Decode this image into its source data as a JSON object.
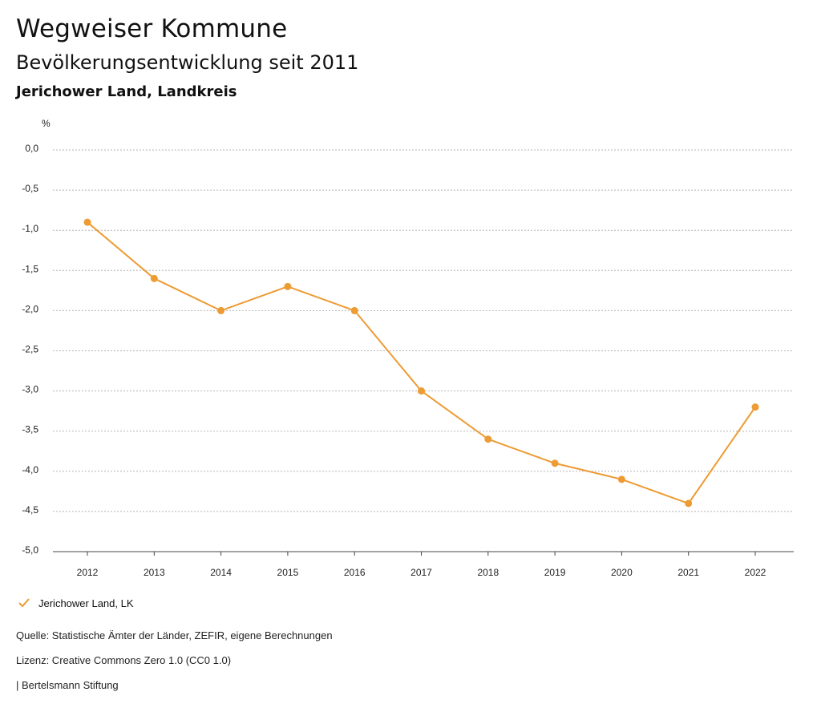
{
  "header": {
    "title": "Wegweiser Kommune",
    "subtitle": "Bevölkerungsentwicklung seit 2011",
    "region": "Jerichower Land, Landkreis"
  },
  "colors": {
    "series": "#ed9b33",
    "grid": "#b5b5b5",
    "axis": "#444444"
  },
  "chart_data": {
    "type": "line",
    "title": "Bevölkerungsentwicklung seit 2011",
    "unit": "%",
    "x": [
      "2012",
      "2013",
      "2014",
      "2015",
      "2016",
      "2017",
      "2018",
      "2019",
      "2020",
      "2021",
      "2022"
    ],
    "y_ticks": [
      0.0,
      -0.5,
      -1.0,
      -1.5,
      -2.0,
      -2.5,
      -3.0,
      -3.5,
      -4.0,
      -4.5,
      -5.0
    ],
    "y_tick_labels": [
      "0,0",
      "-0,5",
      "-1,0",
      "-1,5",
      "-2,0",
      "-2,5",
      "-3,0",
      "-3,5",
      "-4,0",
      "-4,5",
      "-5,0"
    ],
    "ylim": [
      -5.0,
      0.0
    ],
    "grid": true,
    "series": [
      {
        "name": "Jerichower Land, LK",
        "values": [
          -0.9,
          -1.6,
          -2.0,
          -1.7,
          -2.0,
          -3.0,
          -3.6,
          -3.9,
          -4.1,
          -4.4,
          -3.2
        ]
      }
    ],
    "legend_position": "bottom-left"
  },
  "footer": {
    "source": "Quelle: Statistische Ämter der Länder, ZEFIR, eigene Berechnungen",
    "license": "Lizenz: Creative Commons Zero 1.0 (CC0 1.0)",
    "publisher": "| Bertelsmann Stiftung"
  }
}
